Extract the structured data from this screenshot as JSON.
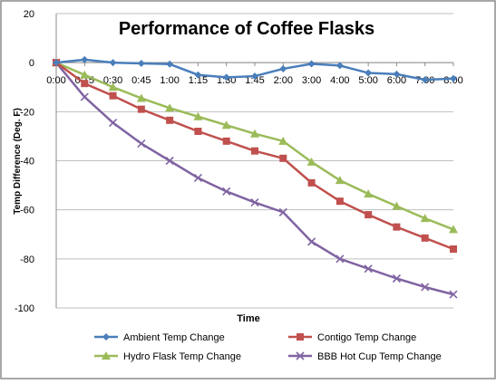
{
  "chart_data": {
    "type": "line",
    "title": "Performance of Coffee Flasks",
    "xlabel": "Time",
    "ylabel": "Temp Difference (Deg. F)",
    "ylim": [
      -100,
      20
    ],
    "yticks": [
      20,
      0,
      -20,
      -40,
      -60,
      -80,
      -100
    ],
    "categories": [
      "0:00",
      "0:15",
      "0:30",
      "0:45",
      "1:00",
      "1:15",
      "1:30",
      "1:45",
      "2:00",
      "3:00",
      "4:00",
      "5:00",
      "6:00",
      "7:00",
      "8:00"
    ],
    "grid": "horizontal",
    "legend_position": "bottom",
    "series": [
      {
        "name": "Ambient Temp Change",
        "color": "#4A7EBB",
        "marker": "diamond",
        "values": [
          0,
          1.2,
          0,
          -0.3,
          -0.6,
          -5,
          -6,
          -5.5,
          -2.5,
          -0.5,
          -1.2,
          -4.2,
          -4.7,
          -7,
          -6.5
        ]
      },
      {
        "name": "Contigo Temp Change",
        "color": "#C0504D",
        "marker": "square",
        "values": [
          0,
          -8.5,
          -13.5,
          -19,
          -23.5,
          -28,
          -32,
          -36,
          -39,
          -49,
          -56.5,
          -62,
          -67,
          -71.5,
          -76
        ]
      },
      {
        "name": "Hydro Flask Temp Change",
        "color": "#9BBB59",
        "marker": "triangle",
        "values": [
          0,
          -5,
          -10,
          -14.5,
          -18.5,
          -22,
          -25.5,
          -29,
          -32,
          -40.5,
          -48,
          -53.5,
          -58.5,
          -63.5,
          -68
        ]
      },
      {
        "name": "BBB Hot Cup Temp Change",
        "color": "#8064A2",
        "marker": "x",
        "values": [
          0,
          -14,
          -24.5,
          -33,
          -40,
          -47,
          -52.5,
          -57,
          -61,
          -73,
          -80,
          -84,
          -88,
          -91.5,
          -94.5
        ]
      }
    ]
  }
}
